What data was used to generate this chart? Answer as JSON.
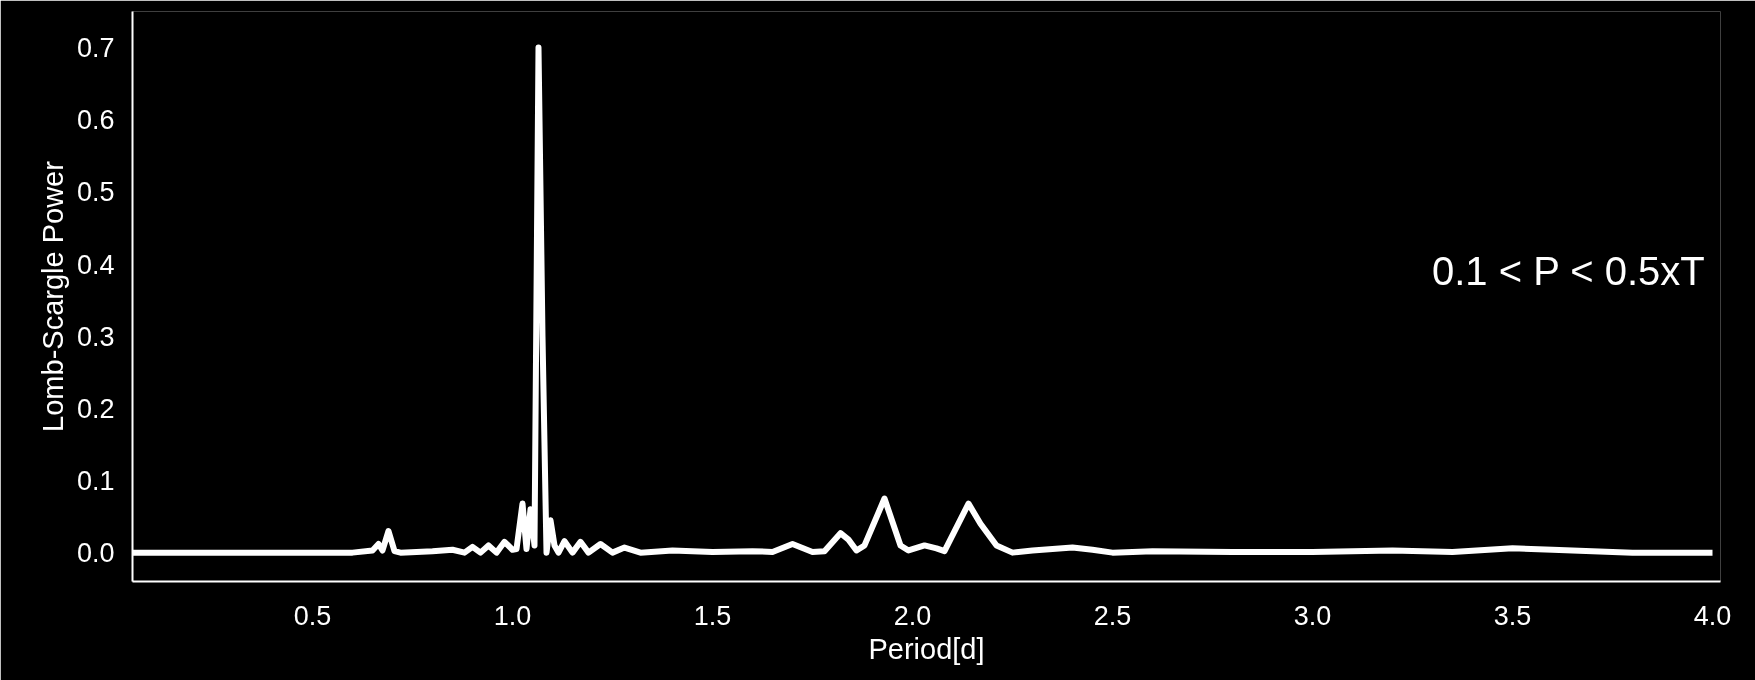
{
  "chart_data": {
    "type": "line",
    "xlabel": "Period[d]",
    "ylabel": "Lomb-Scargle Power",
    "annotations": [
      "0.1 < P < 0.5xT"
    ],
    "xlim": [
      0.05,
      4.02
    ],
    "ylim": [
      -0.04,
      0.75
    ],
    "xticks": [
      0.5,
      {
        "value": 1,
        "label": "1.0"
      },
      1.5,
      {
        "value": 2,
        "label": "2.0"
      },
      2.5,
      {
        "value": 3,
        "label": "3.0"
      },
      3.5,
      {
        "value": 4,
        "label": "4.0"
      }
    ],
    "yticks": [
      {
        "value": 0,
        "label": "0.0"
      },
      0.1,
      0.2,
      0.3,
      0.4,
      0.5,
      0.6,
      0.7
    ],
    "grid": false,
    "marker": "none",
    "line_style": "solid",
    "series": [
      {
        "color": "#ffffff",
        "x": [
          0.05,
          0.3,
          0.6,
          0.65,
          0.665,
          0.675,
          0.69,
          0.705,
          0.72,
          0.8,
          0.85,
          0.88,
          0.9,
          0.92,
          0.94,
          0.96,
          0.98,
          1.0,
          1.01,
          1.025,
          1.035,
          1.045,
          1.055,
          1.065,
          1.075,
          1.085,
          1.095,
          1.105,
          1.115,
          1.13,
          1.15,
          1.17,
          1.19,
          1.22,
          1.25,
          1.28,
          1.32,
          1.4,
          1.5,
          1.6,
          1.65,
          1.7,
          1.75,
          1.78,
          1.82,
          1.84,
          1.86,
          1.88,
          1.93,
          1.97,
          1.99,
          2.03,
          2.06,
          2.08,
          2.14,
          2.17,
          2.21,
          2.25,
          2.3,
          2.4,
          2.45,
          2.5,
          2.6,
          2.8,
          3.0,
          3.2,
          3.35,
          3.5,
          3.6,
          3.8,
          4.0
        ],
        "values": [
          0.0,
          0.0,
          0.0,
          0.003,
          0.012,
          0.003,
          0.03,
          0.002,
          0.0,
          0.002,
          0.004,
          0.0,
          0.008,
          0.0,
          0.01,
          0.0,
          0.015,
          0.004,
          0.005,
          0.068,
          0.005,
          0.06,
          0.01,
          0.7,
          0.3,
          0.0,
          0.045,
          0.01,
          0.0,
          0.016,
          0.0,
          0.015,
          0.0,
          0.012,
          0.0,
          0.007,
          0.0,
          0.003,
          0.001,
          0.002,
          0.001,
          0.012,
          0.001,
          0.002,
          0.027,
          0.018,
          0.003,
          0.01,
          0.075,
          0.01,
          0.003,
          0.01,
          0.006,
          0.002,
          0.068,
          0.04,
          0.01,
          0.0,
          0.003,
          0.007,
          0.004,
          0.0,
          0.002,
          0.001,
          0.001,
          0.003,
          0.001,
          0.006,
          0.004,
          0.0,
          0.0
        ]
      }
    ]
  }
}
